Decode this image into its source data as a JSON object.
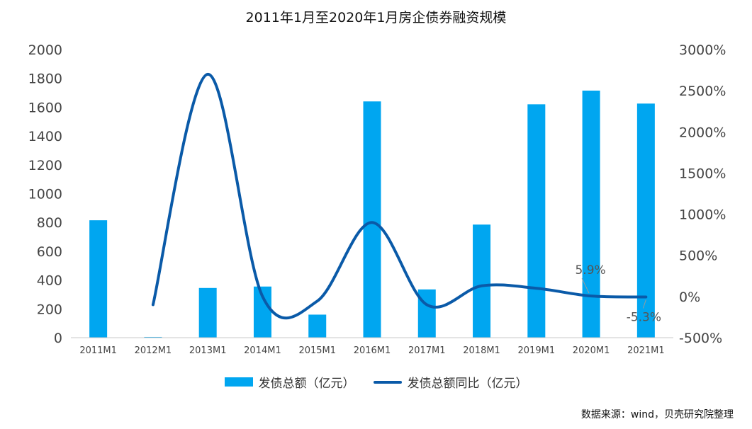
{
  "title": "2011年1月至2020年1月房企债券融资规模",
  "source": "数据来源：wind，贝壳研究院整理",
  "legend": {
    "bar_label": "发债总额（亿元）",
    "line_label": "发债总额同比（亿元）"
  },
  "colors": {
    "bar": "#00a6f0",
    "line": "#0a5aa8",
    "axis_text": "#444444",
    "annotation": "#555555"
  },
  "chart_data": {
    "type": "bar",
    "title": "2011年1月至2020年1月房企债券融资规模",
    "categories": [
      "2011M1",
      "2012M1",
      "2013M1",
      "2014M1",
      "2015M1",
      "2016M1",
      "2017M1",
      "2018M1",
      "2019M1",
      "2020M1",
      "2021M1"
    ],
    "series": [
      {
        "name": "发债总额（亿元）",
        "type": "bar",
        "axis": "left",
        "values": [
          815,
          5,
          345,
          355,
          160,
          1640,
          335,
          785,
          1620,
          1715,
          1625
        ]
      },
      {
        "name": "发债总额同比（亿元）",
        "type": "line",
        "axis": "right",
        "smooth": true,
        "values": [
          null,
          -99,
          2700,
          0,
          -55,
          900,
          -100,
          130,
          100,
          5.9,
          -5.3
        ]
      }
    ],
    "y_left": {
      "ylim": [
        0,
        2000
      ],
      "ticks": [
        0,
        200,
        400,
        600,
        800,
        1000,
        1200,
        1400,
        1600,
        1800,
        2000
      ]
    },
    "y_right": {
      "ylim": [
        -500,
        3000
      ],
      "ticks": [
        -500,
        0,
        500,
        1000,
        1500,
        2000,
        2500,
        3000
      ],
      "tick_labels": [
        "-500%",
        "0%",
        "500%",
        "1000%",
        "1500%",
        "2000%",
        "2500%",
        "3000%"
      ]
    },
    "annotations": [
      {
        "category": "2020M1",
        "text": "5.9%"
      },
      {
        "category": "2021M1",
        "text": "-5.3%"
      }
    ],
    "grid": false,
    "legend_position": "bottom"
  }
}
